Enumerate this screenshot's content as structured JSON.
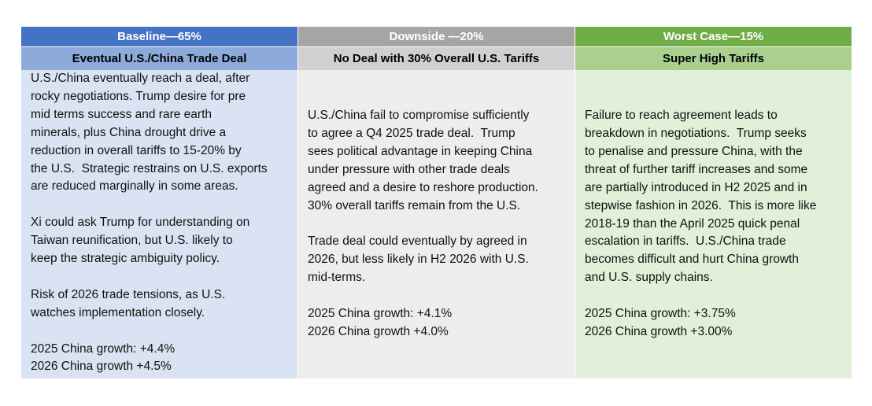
{
  "columns": [
    {
      "header": "Baseline—65%",
      "subheader": "Eventual U.S./China Trade Deal",
      "paragraphs": [
        [
          "U.S./China eventually reach a deal, after",
          "rocky negotiations. Trump desire for pre",
          "mid terms success and rare earth",
          "minerals, plus China drought drive a",
          "reduction in overall tariffs to 15-20% by",
          "the U.S.  Strategic restrains on U.S. exports",
          "are reduced marginally in some areas."
        ],
        [
          "Xi could ask Trump for understanding on",
          "Taiwan reunification, but U.S. likely to",
          "keep the strategic ambiguity policy."
        ],
        [
          "Risk of 2026 trade tensions, as U.S.",
          "watches implementation closely."
        ],
        [
          "2025 China growth: +4.4%",
          "2026 China growth +4.5%"
        ]
      ]
    },
    {
      "header": "Downside —20%",
      "subheader": "No Deal with 30% Overall U.S. Tariffs",
      "paragraphs": [
        [
          "U.S./China fail to compromise sufficiently",
          "to agree a Q4 2025 trade deal.  Trump",
          "sees political advantage in keeping China",
          "under pressure with other trade deals",
          "agreed and a desire to reshore production.",
          "30% overall tariffs remain from the U.S."
        ],
        [
          "Trade deal could eventually by agreed in",
          "2026, but less likely in H2 2026 with U.S.",
          "mid-terms."
        ],
        [
          "2025 China growth: +4.1%",
          "2026 China growth +4.0%"
        ]
      ]
    },
    {
      "header": "Worst Case—15%",
      "subheader": "Super High Tariffs",
      "paragraphs": [
        [
          "Failure to reach agreement leads to",
          "breakdown in negotiations.  Trump seeks",
          "to penalise and pressure China, with the",
          "threat of further tariff increases and some",
          "are partially introduced in H2 2025 and in",
          "stepwise fashion in 2026.  This is more like",
          "2018-19 than the April 2025 quick penal",
          "escalation in tariffs.  U.S./China trade",
          "becomes difficult and hurt China growth",
          "and U.S. supply chains."
        ],
        [
          "2025 China growth: +3.75%",
          "2026 China growth +3.00%"
        ]
      ]
    }
  ]
}
